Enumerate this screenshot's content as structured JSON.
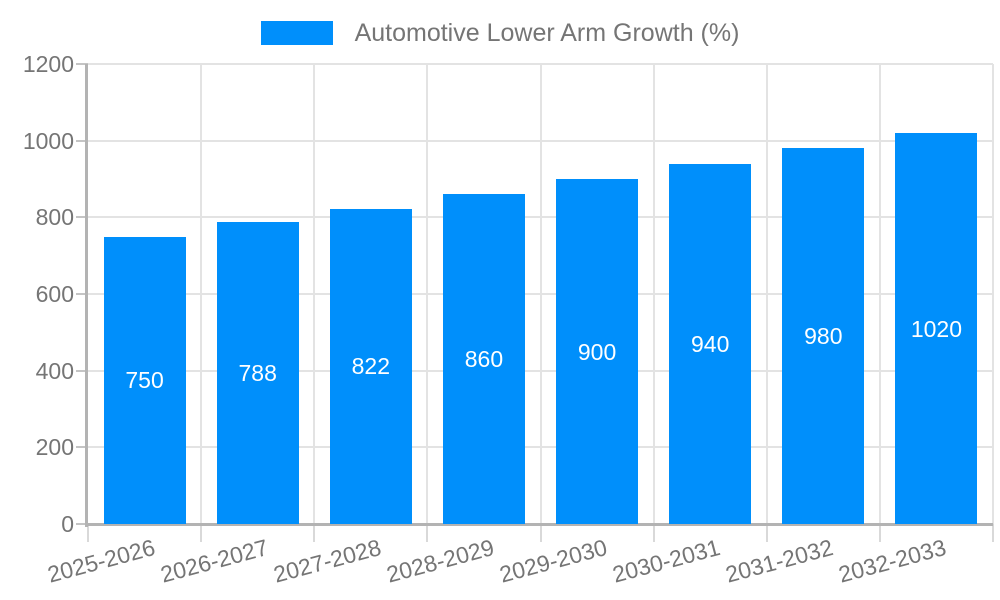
{
  "chart_data": {
    "type": "bar",
    "title": "Automotive Lower Arm Growth (%)",
    "xlabel": "",
    "ylabel": "",
    "categories": [
      "2025-2026",
      "2026-2027",
      "2027-2028",
      "2028-2029",
      "2029-2030",
      "2030-2031",
      "2031-2032",
      "2032-2033"
    ],
    "series": [
      {
        "name": "Automotive Lower Arm Growth (%)",
        "values": [
          750,
          788,
          822,
          860,
          900,
          940,
          980,
          1020
        ],
        "color": "#008FFB"
      }
    ],
    "bar_value_labels": [
      750,
      788,
      822,
      860,
      900,
      940,
      980,
      1020
    ],
    "ylim": [
      0,
      1200
    ],
    "yticks": [
      0,
      200,
      400,
      600,
      800,
      1000,
      1200
    ],
    "grid": true,
    "legend_position": "top-center",
    "x_label_rotation_deg": -15
  },
  "colors": {
    "bar": "#008FFB",
    "bar_value_text": "#ffffff",
    "axis_line": "#b3b3b3",
    "gridline": "#e3e3e3",
    "y_tick": "#c4c4c4",
    "x_tick": "#d9d9d9",
    "axis_text": "#757575",
    "legend_text": "#757575",
    "background": "#ffffff"
  }
}
